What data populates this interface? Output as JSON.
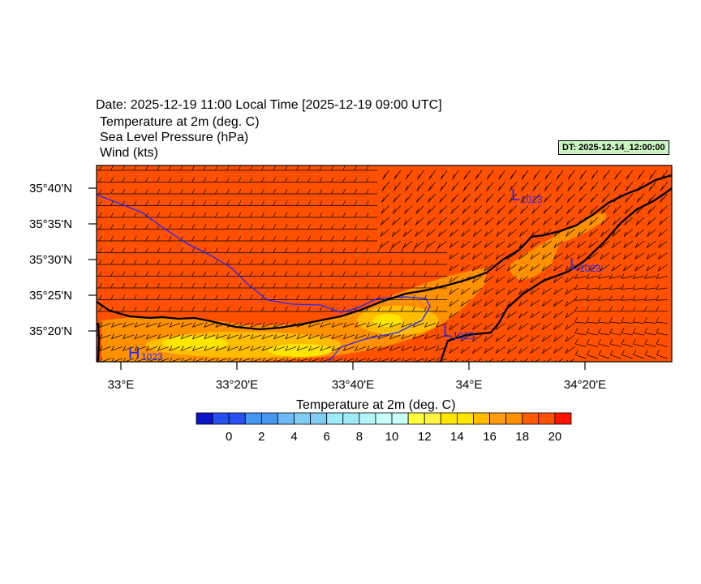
{
  "header": {
    "title": "Date: 2025-12-19  11:00 Local Time [2025-12-19  09:00 UTC]",
    "fields": [
      "Temperature at 2m   (deg. C)",
      "Sea Level Pressure   (hPa)",
      "Wind   (kts)"
    ],
    "dt_badge": "DT: 2025-12-14_12:00:00",
    "dt_badge_color": "#c8f5c0"
  },
  "map": {
    "lat_labels": [
      "35°40'N",
      "35°35'N",
      "35°30'N",
      "35°25'N",
      "35°20'N"
    ],
    "lon_labels": [
      "33°E",
      "33°20'E",
      "33°40'E",
      "34°E",
      "34°20'E"
    ],
    "background_color": "#ff5000",
    "pressure_centers": [
      {
        "type": "H",
        "value": "1023"
      },
      {
        "type": "L",
        "value": "1023"
      },
      {
        "type": "L",
        "value": "1023"
      },
      {
        "type": "L",
        "value": "1023"
      }
    ],
    "isobar_color": "#1e28ff",
    "coastline_color": "#000000",
    "wind_direction": "predominantly westerly"
  },
  "colorbar": {
    "title": "Temperature at 2m  (deg. C)",
    "labels": [
      "0",
      "2",
      "4",
      "6",
      "8",
      "10",
      "12",
      "14",
      "16",
      "18",
      "20"
    ],
    "colors": [
      "#0a14c8",
      "#2850f0",
      "#2850f0",
      "#4696f0",
      "#4696f0",
      "#6eb9f5",
      "#82cdf5",
      "#82cdf5",
      "#a0ebfa",
      "#a0ebfa",
      "#b4f5fa",
      "#c8fffa",
      "#c8fffa",
      "#ffff3c",
      "#fff546",
      "#ffe600",
      "#ffe600",
      "#ffbe00",
      "#ff9b14",
      "#ff9100",
      "#ff5a00",
      "#ff5000",
      "#ff1400"
    ]
  }
}
